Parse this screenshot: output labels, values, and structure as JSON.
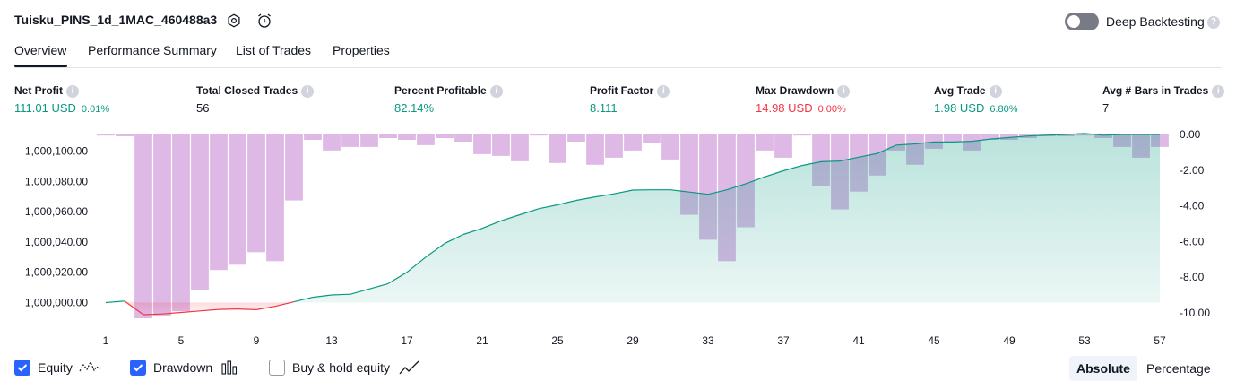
{
  "header": {
    "title": "Tuisku_PINS_1d_1MAC_460488a3",
    "deep_backtesting_label": "Deep Backtesting"
  },
  "tabs": [
    {
      "label": "Overview",
      "active": true
    },
    {
      "label": "Performance Summary",
      "active": false
    },
    {
      "label": "List of Trades",
      "active": false
    },
    {
      "label": "Properties",
      "active": false
    }
  ],
  "metrics": [
    {
      "label": "Net Profit",
      "value": "111.01 USD",
      "pct": "0.01%",
      "color": "#089981"
    },
    {
      "label": "Total Closed Trades",
      "value": "56",
      "pct": "",
      "color": "#131722"
    },
    {
      "label": "Percent Profitable",
      "value": "82.14%",
      "pct": "",
      "color": "#089981"
    },
    {
      "label": "Profit Factor",
      "value": "8.111",
      "pct": "",
      "color": "#089981"
    },
    {
      "label": "Max Drawdown",
      "value": "14.98 USD",
      "pct": "0.00%",
      "color": "#f23645"
    },
    {
      "label": "Avg Trade",
      "value": "1.98 USD",
      "pct": "6.80%",
      "color": "#089981"
    },
    {
      "label": "Avg # Bars in Trades",
      "value": "7",
      "pct": "",
      "color": "#131722"
    }
  ],
  "chart_data": {
    "type": "area",
    "left_axis": {
      "ticks": [
        1000000,
        1000020,
        1000040,
        1000060,
        1000080,
        1000100
      ],
      "tick_labels": [
        "1,000,000.00",
        "1,000,020.00",
        "1,000,040.00",
        "1,000,060.00",
        "1,000,080.00",
        "1,000,100.00"
      ],
      "range": [
        999992,
        1000111
      ]
    },
    "right_axis": {
      "ticks": [
        0,
        -2,
        -4,
        -6,
        -8,
        -10
      ],
      "tick_labels": [
        "0.00",
        "-2.00",
        "-4.00",
        "-6.00",
        "-8.00",
        "-10.00"
      ],
      "range": [
        -10.1,
        0
      ]
    },
    "x_ticks": [
      1,
      5,
      9,
      13,
      17,
      21,
      25,
      29,
      33,
      37,
      41,
      45,
      49,
      53,
      57
    ],
    "x_range": [
      1,
      57
    ],
    "series": [
      {
        "name": "Equity",
        "x": [
          1,
          2,
          3,
          4,
          5,
          6,
          7,
          8,
          9,
          10,
          11,
          12,
          13,
          14,
          15,
          16,
          17,
          18,
          19,
          20,
          21,
          22,
          23,
          24,
          25,
          26,
          27,
          28,
          29,
          30,
          31,
          32,
          33,
          34,
          35,
          36,
          37,
          38,
          39,
          40,
          41,
          42,
          43,
          44,
          45,
          46,
          47,
          48,
          49,
          50,
          51,
          52,
          53,
          54,
          55,
          56,
          57
        ],
        "values": [
          1000000,
          1000001,
          999992,
          999992.5,
          999993.5,
          999994.5,
          999995.5,
          999995.8,
          999995.3,
          999997.5,
          1000000.5,
          1000003.5,
          1000005,
          1000005.5,
          1000009,
          1000012.5,
          1000020,
          1000030,
          1000039,
          1000045,
          1000049,
          1000054,
          1000058,
          1000062,
          1000064.5,
          1000067.5,
          1000069.8,
          1000071.8,
          1000074.3,
          1000074.5,
          1000074.5,
          1000073,
          1000071.5,
          1000074.5,
          1000078.5,
          1000083,
          1000087,
          1000090.5,
          1000093,
          1000093.5,
          1000096,
          1000098.5,
          1000104,
          1000104.8,
          1000106,
          1000106,
          1000106.5,
          1000108,
          1000109,
          1000110,
          1000110.5,
          1000111,
          1000111.7,
          1000110.5,
          1000111,
          1000111,
          1000111
        ],
        "color": "#089981",
        "fill": "#c8eee3"
      },
      {
        "name": "Drawdown",
        "x": [
          1,
          2,
          3,
          4,
          5,
          6,
          7,
          8,
          9,
          10,
          11,
          12,
          13,
          14,
          15,
          16,
          17,
          18,
          19,
          20,
          21,
          22,
          23,
          24,
          25,
          26,
          27,
          28,
          29,
          30,
          31,
          32,
          33,
          34,
          35,
          36,
          37,
          38,
          39,
          40,
          41,
          42,
          43,
          44,
          45,
          46,
          47,
          48,
          49,
          50,
          51,
          52,
          53,
          54,
          55,
          56,
          57
        ],
        "values": [
          0,
          -0.1,
          -10.3,
          -10.2,
          -9.9,
          -8.7,
          -7.6,
          -7.3,
          -6.6,
          -7.1,
          -3.7,
          -0.3,
          -0.9,
          -0.7,
          -0.7,
          -0.2,
          -0.3,
          -0.6,
          -0.2,
          -0.4,
          -1.1,
          -1.2,
          -1.5,
          0,
          -1.6,
          -0.4,
          -1.7,
          -1.3,
          -0.9,
          -0.5,
          -1.4,
          -4.5,
          -5.9,
          -7.1,
          -5.2,
          -0.9,
          -1.3,
          0,
          -2.9,
          -4.2,
          -3.2,
          -2.3,
          -0.9,
          -1.7,
          -0.8,
          -0.4,
          -0.9,
          -0.3,
          -0.3,
          -0.2,
          -0.1,
          -0.1,
          0,
          -0.2,
          -0.7,
          -1.3,
          -0.7
        ],
        "color": "#ce93d8"
      }
    ]
  },
  "legend": {
    "equity_label": "Equity",
    "drawdown_label": "Drawdown",
    "buyhold_label": "Buy & hold equity",
    "equity_checked": true,
    "drawdown_checked": true,
    "buyhold_checked": false
  },
  "mode_toggle": {
    "absolute_label": "Absolute",
    "percentage_label": "Percentage",
    "selected": "Absolute"
  }
}
